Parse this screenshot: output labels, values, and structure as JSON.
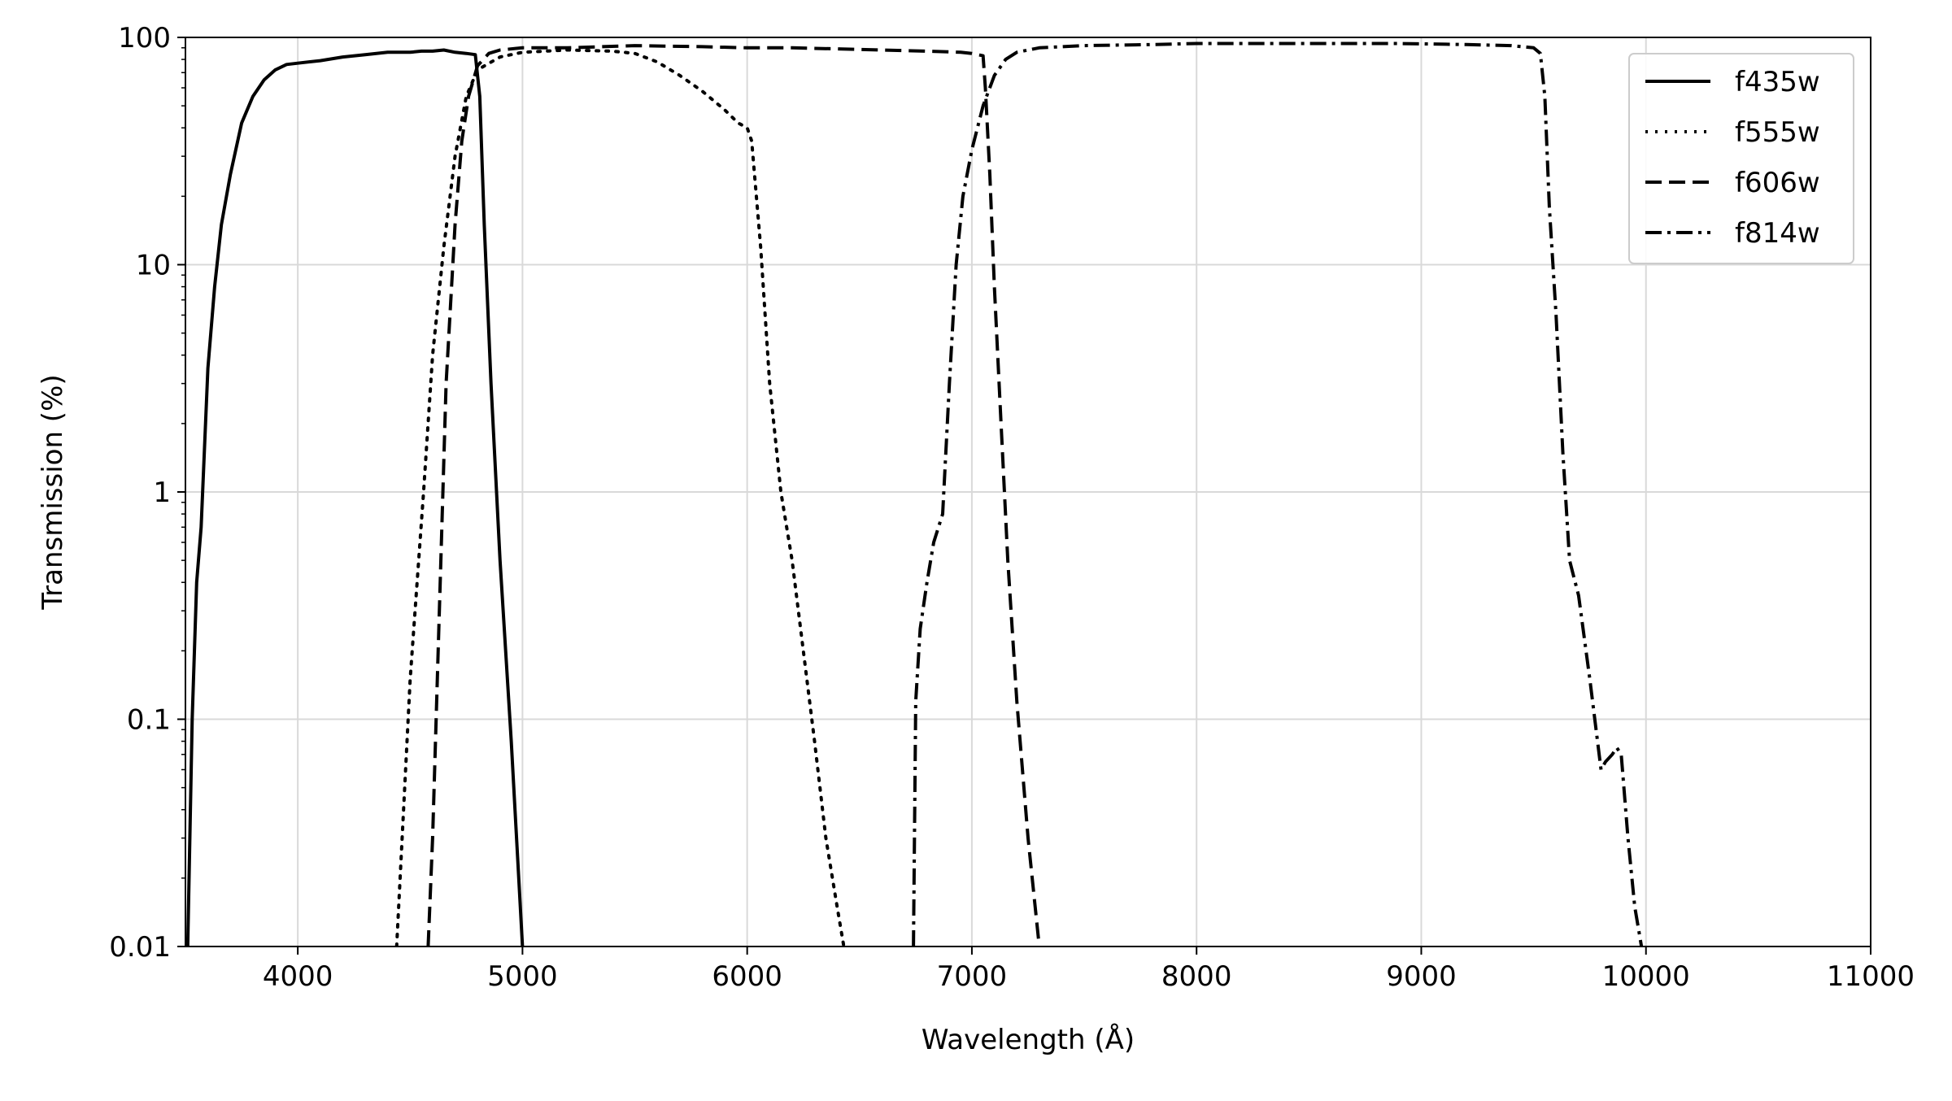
{
  "chart_data": {
    "type": "line",
    "xlabel": "Wavelength (Å)",
    "ylabel": "Transmission (%)",
    "xlim": [
      3500,
      11000
    ],
    "ylim": [
      0.01,
      100
    ],
    "yscale": "log",
    "grid": true,
    "legend_position": "top-right",
    "xticks": [
      4000,
      5000,
      6000,
      7000,
      8000,
      9000,
      10000,
      11000
    ],
    "xtick_labels": [
      "4000",
      "5000",
      "6000",
      "7000",
      "8000",
      "9000",
      "10000",
      "11000"
    ],
    "yticks": [
      0.01,
      0.1,
      1,
      10,
      100
    ],
    "ytick_labels": [
      "0.01",
      "0.1",
      "1",
      "10",
      "100"
    ],
    "series": [
      {
        "name": "f435w",
        "style": "solid",
        "x": [
          3510,
          3530,
          3550,
          3570,
          3600,
          3630,
          3660,
          3700,
          3750,
          3800,
          3850,
          3900,
          3950,
          4000,
          4100,
          4200,
          4300,
          4400,
          4500,
          4550,
          4600,
          4650,
          4700,
          4750,
          4790,
          4810,
          4830,
          4860,
          4900,
          4950,
          5000
        ],
        "y": [
          0.01,
          0.1,
          0.4,
          0.7,
          3.5,
          8,
          15,
          25,
          42,
          55,
          65,
          72,
          76,
          77,
          79,
          82,
          84,
          86,
          86,
          87,
          87,
          88,
          86,
          85,
          84,
          55,
          15,
          3,
          0.5,
          0.08,
          0.01
        ]
      },
      {
        "name": "f555w",
        "style": "dotted",
        "x": [
          4440,
          4500,
          4560,
          4600,
          4650,
          4700,
          4750,
          4800,
          4900,
          5000,
          5200,
          5400,
          5500,
          5600,
          5700,
          5800,
          5900,
          5960,
          6000,
          6020,
          6060,
          6100,
          6150,
          6200,
          6250,
          6300,
          6350,
          6400,
          6430
        ],
        "y": [
          0.01,
          0.15,
          1,
          4,
          12,
          30,
          55,
          72,
          82,
          86,
          88,
          87,
          85,
          78,
          68,
          58,
          48,
          42,
          40,
          35,
          12,
          3,
          1,
          0.5,
          0.2,
          0.08,
          0.03,
          0.015,
          0.01
        ]
      },
      {
        "name": "f606w",
        "style": "dashed",
        "x": [
          4580,
          4600,
          4630,
          4660,
          4700,
          4730,
          4760,
          4800,
          4850,
          4900,
          5000,
          5200,
          5500,
          5800,
          6000,
          6200,
          6400,
          6600,
          6800,
          6950,
          7000,
          7050,
          7060,
          7080,
          7100,
          7130,
          7160,
          7200,
          7250,
          7300
        ],
        "y": [
          0.01,
          0.03,
          0.3,
          3,
          15,
          35,
          55,
          75,
          85,
          88,
          90,
          90,
          92,
          91,
          90,
          90,
          89,
          88,
          87,
          86,
          85,
          83,
          60,
          25,
          8,
          2,
          0.5,
          0.12,
          0.03,
          0.01
        ]
      },
      {
        "name": "f814w",
        "style": "dashdot",
        "x": [
          6740,
          6750,
          6770,
          6800,
          6830,
          6870,
          6900,
          6930,
          6960,
          7000,
          7050,
          7100,
          7150,
          7200,
          7300,
          7500,
          7800,
          8000,
          8300,
          8600,
          8900,
          9200,
          9400,
          9500,
          9530,
          9550,
          9570,
          9600,
          9630,
          9660,
          9700,
          9720,
          9750,
          9800,
          9820,
          9850,
          9870,
          9890,
          9920,
          9950,
          9980
        ],
        "y": [
          0.01,
          0.12,
          0.25,
          0.4,
          0.6,
          0.8,
          3,
          10,
          20,
          32,
          50,
          68,
          80,
          86,
          90,
          92,
          93,
          94,
          94,
          94,
          94,
          93,
          92,
          90,
          85,
          55,
          18,
          6,
          1.5,
          0.5,
          0.35,
          0.25,
          0.15,
          0.06,
          0.065,
          0.07,
          0.075,
          0.07,
          0.03,
          0.015,
          0.01
        ]
      }
    ]
  }
}
